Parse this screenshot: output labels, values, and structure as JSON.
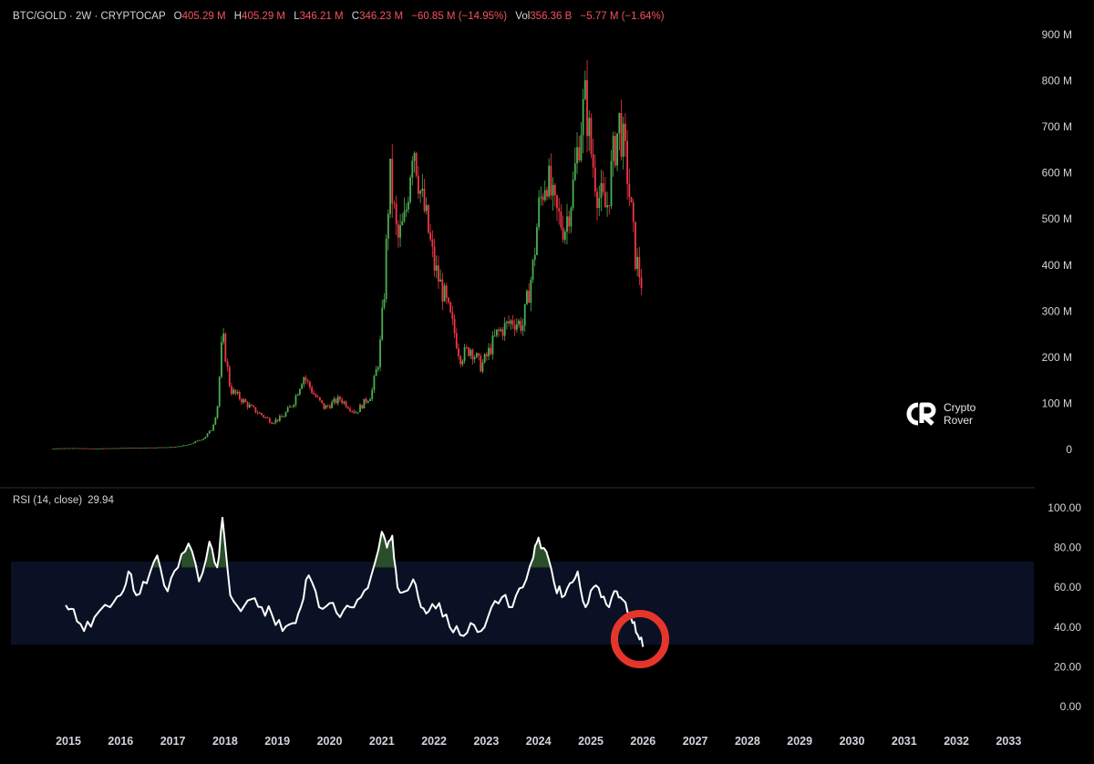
{
  "header": {
    "symbol": "BTC/GOLD · 2W · CRYPTOCAP",
    "open_label": "O",
    "open": "405.29 M",
    "high_label": "H",
    "high": "405.29 M",
    "low_label": "L",
    "low": "346.21 M",
    "close_label": "C",
    "close": "346.23 M",
    "change": "−60.85 M (−14.95%)",
    "vol_label": "Vol",
    "vol": "356.36 B",
    "vol_change": "−5.77 M (−1.64%)"
  },
  "rsi_legend": {
    "label": "RSI (14, close)",
    "value": "29.94"
  },
  "logo": {
    "line1": "Crypto",
    "line2": "Rover"
  },
  "colors": {
    "up": "#26a69a",
    "up_green": "#4caf50",
    "down": "#f23645",
    "rsi_line": "#ffffff",
    "rsi_band": "#0a1124",
    "highlight_circle": "#e8352b",
    "overbought_fill": "#2a4d2a"
  },
  "chart_data": [
    {
      "type": "candlestick",
      "title": "BTC/GOLD · 2W · CRYPTOCAP",
      "y_ticks": [
        "900 M",
        "800 M",
        "700 M",
        "600 M",
        "500 M",
        "400 M",
        "300 M",
        "200 M",
        "100 M",
        "0"
      ],
      "ylim": [
        0,
        900
      ],
      "x_ticks": [
        "2015",
        "2016",
        "2017",
        "2018",
        "2019",
        "2020",
        "2021",
        "2022",
        "2023",
        "2024",
        "2025",
        "2026",
        "2027",
        "2028",
        "2029",
        "2030",
        "2031",
        "2032",
        "2033"
      ],
      "close_series_millions": {
        "x": [
          2014.7,
          2015.0,
          2015.5,
          2016.0,
          2016.5,
          2017.0,
          2017.3,
          2017.6,
          2017.75,
          2017.85,
          2017.95,
          2018.1,
          2018.3,
          2018.5,
          2018.9,
          2019.1,
          2019.3,
          2019.5,
          2019.7,
          2019.9,
          2020.2,
          2020.5,
          2020.8,
          2020.95,
          2021.05,
          2021.15,
          2021.3,
          2021.45,
          2021.6,
          2021.75,
          2021.85,
          2022.0,
          2022.2,
          2022.4,
          2022.5,
          2022.7,
          2022.9,
          2023.0,
          2023.2,
          2023.5,
          2023.7,
          2023.9,
          2024.0,
          2024.15,
          2024.3,
          2024.5,
          2024.65,
          2024.8,
          2024.9,
          2025.0,
          2025.15,
          2025.3,
          2025.45,
          2025.55,
          2025.7,
          2025.85,
          2026.0
        ],
        "y": [
          2,
          3,
          2,
          3,
          4,
          5,
          10,
          25,
          45,
          90,
          250,
          130,
          110,
          90,
          60,
          70,
          100,
          160,
          120,
          90,
          110,
          80,
          120,
          200,
          350,
          600,
          450,
          500,
          680,
          550,
          500,
          400,
          330,
          250,
          200,
          220,
          180,
          200,
          250,
          280,
          270,
          400,
          520,
          600,
          520,
          480,
          560,
          700,
          760,
          650,
          550,
          520,
          650,
          710,
          600,
          420,
          350
        ]
      },
      "last_close": 346.23
    },
    {
      "type": "line",
      "title": "RSI (14, close)",
      "y_ticks": [
        "100.00",
        "80.00",
        "60.00",
        "40.00",
        "20.00",
        "0.00"
      ],
      "ylim": [
        0,
        100
      ],
      "band": [
        30,
        70
      ],
      "x": [
        2014.95,
        2015.1,
        2015.3,
        2015.5,
        2015.8,
        2016.0,
        2016.15,
        2016.3,
        2016.5,
        2016.7,
        2016.9,
        2017.1,
        2017.3,
        2017.5,
        2017.7,
        2017.85,
        2017.95,
        2018.1,
        2018.3,
        2018.5,
        2018.7,
        2018.9,
        2019.1,
        2019.3,
        2019.45,
        2019.6,
        2019.8,
        2020.0,
        2020.2,
        2020.4,
        2020.6,
        2020.8,
        2021.0,
        2021.1,
        2021.2,
        2021.3,
        2021.45,
        2021.6,
        2021.75,
        2021.9,
        2022.1,
        2022.3,
        2022.5,
        2022.7,
        2022.9,
        2023.1,
        2023.3,
        2023.5,
        2023.7,
        2023.9,
        2024.0,
        2024.15,
        2024.3,
        2024.45,
        2024.6,
        2024.75,
        2024.9,
        2025.05,
        2025.2,
        2025.35,
        2025.5,
        2025.6,
        2025.7,
        2025.8,
        2025.9,
        2026.0
      ],
      "values": [
        51,
        49,
        38,
        45,
        50,
        56,
        68,
        56,
        62,
        76,
        58,
        70,
        82,
        63,
        83,
        70,
        95,
        56,
        48,
        54,
        50,
        46,
        38,
        42,
        50,
        66,
        50,
        52,
        45,
        50,
        55,
        66,
        88,
        80,
        86,
        60,
        58,
        64,
        50,
        48,
        52,
        40,
        36,
        42,
        38,
        50,
        55,
        50,
        60,
        75,
        85,
        78,
        62,
        55,
        62,
        68,
        50,
        60,
        55,
        50,
        58,
        54,
        48,
        42,
        36,
        30
      ]
    }
  ]
}
